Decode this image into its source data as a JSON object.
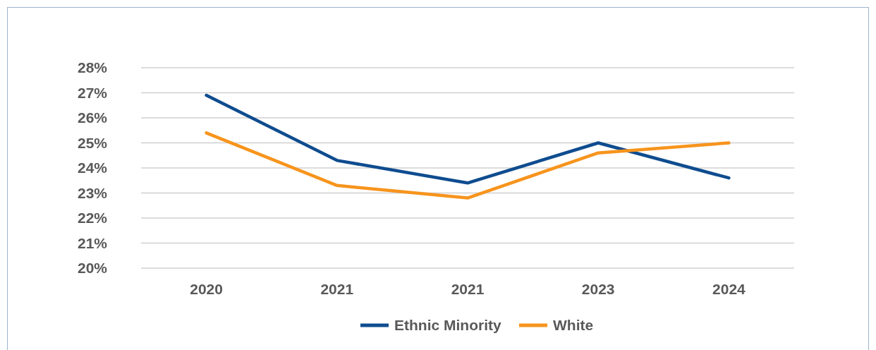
{
  "chart_data": {
    "type": "line",
    "categories": [
      "2020",
      "2021",
      "2021",
      "2023",
      "2024"
    ],
    "series": [
      {
        "name": "Ethnic Minority",
        "color": "#0f4c8f",
        "values": [
          26.9,
          24.3,
          23.4,
          25.0,
          23.6
        ]
      },
      {
        "name": "White",
        "color": "#f7941d",
        "values": [
          25.4,
          23.3,
          22.8,
          24.6,
          25.0
        ]
      }
    ],
    "ylim": [
      20,
      28
    ],
    "yticks": [
      {
        "value": 20,
        "label": "20%"
      },
      {
        "value": 21,
        "label": "21%"
      },
      {
        "value": 22,
        "label": "22%"
      },
      {
        "value": 23,
        "label": "23%"
      },
      {
        "value": 24,
        "label": "24%"
      },
      {
        "value": 25,
        "label": "25%"
      },
      {
        "value": 26,
        "label": "26%"
      },
      {
        "value": 27,
        "label": "27%"
      },
      {
        "value": 28,
        "label": "28%"
      }
    ],
    "grid": "y",
    "legend": "bottom",
    "marker": "none",
    "line_style": "solid"
  }
}
